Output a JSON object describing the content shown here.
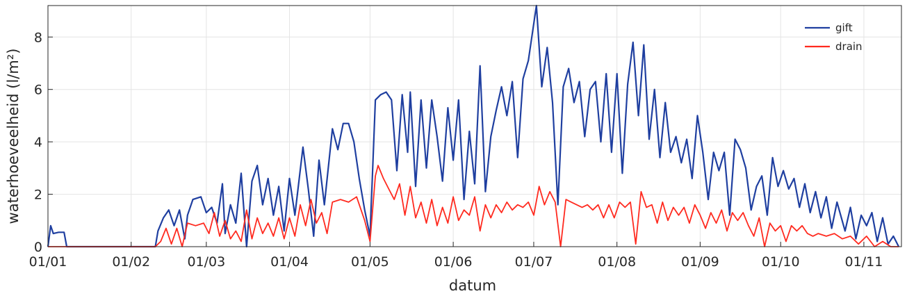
{
  "chart_data": {
    "type": "line",
    "title": "",
    "xlabel": "datum",
    "ylabel": "waterhoeveelheid (l/m²)",
    "x_tick_labels": [
      "01/01",
      "01/02",
      "01/03",
      "01/04",
      "01/05",
      "01/06",
      "01/07",
      "01/08",
      "01/09",
      "01/10",
      "01/11"
    ],
    "y_ticks": [
      0,
      2,
      4,
      6,
      8
    ],
    "xlim": [
      "01/01",
      "15/11"
    ],
    "ylim": [
      0,
      9.2
    ],
    "grid": true,
    "legend_position": "top-right",
    "series": [
      {
        "name": "gift",
        "color": "#1f3fa0",
        "points": [
          [
            "01/01",
            0
          ],
          [
            "02/01",
            0.8
          ],
          [
            "03/01",
            0.5
          ],
          [
            "05/01",
            0.55
          ],
          [
            "07/01",
            0.55
          ],
          [
            "08/01",
            0
          ],
          [
            "01/02",
            0
          ],
          [
            "10/02",
            0
          ],
          [
            "11/02",
            0.6
          ],
          [
            "13/02",
            1.1
          ],
          [
            "15/02",
            1.4
          ],
          [
            "17/02",
            0.8
          ],
          [
            "19/02",
            1.4
          ],
          [
            "21/02",
            0.3
          ],
          [
            "22/02",
            1.2
          ],
          [
            "24/02",
            1.8
          ],
          [
            "27/02",
            1.9
          ],
          [
            "01/03",
            1.3
          ],
          [
            "03/03",
            1.5
          ],
          [
            "05/03",
            0.9
          ],
          [
            "07/03",
            2.4
          ],
          [
            "08/03",
            0.5
          ],
          [
            "10/03",
            1.6
          ],
          [
            "12/03",
            0.9
          ],
          [
            "14/03",
            2.8
          ],
          [
            "16/03",
            0
          ],
          [
            "18/03",
            2.5
          ],
          [
            "20/03",
            3.1
          ],
          [
            "22/03",
            1.6
          ],
          [
            "24/03",
            2.6
          ],
          [
            "26/03",
            1.2
          ],
          [
            "28/03",
            2.3
          ],
          [
            "30/03",
            0.6
          ],
          [
            "01/04",
            2.6
          ],
          [
            "03/04",
            1.2
          ],
          [
            "06/04",
            3.8
          ],
          [
            "08/04",
            2.2
          ],
          [
            "10/04",
            0.4
          ],
          [
            "12/04",
            3.3
          ],
          [
            "14/04",
            1.6
          ],
          [
            "17/04",
            4.5
          ],
          [
            "19/04",
            3.7
          ],
          [
            "21/04",
            4.7
          ],
          [
            "23/04",
            4.7
          ],
          [
            "25/04",
            4.0
          ],
          [
            "27/04",
            2.6
          ],
          [
            "29/04",
            1.4
          ],
          [
            "01/05",
            0.4
          ],
          [
            "03/05",
            5.6
          ],
          [
            "05/05",
            5.8
          ],
          [
            "07/05",
            5.9
          ],
          [
            "09/05",
            5.6
          ],
          [
            "11/05",
            2.9
          ],
          [
            "13/05",
            5.8
          ],
          [
            "15/05",
            3.6
          ],
          [
            "16/05",
            5.9
          ],
          [
            "18/05",
            2.3
          ],
          [
            "20/05",
            5.6
          ],
          [
            "22/05",
            3.0
          ],
          [
            "24/05",
            5.6
          ],
          [
            "26/05",
            4.2
          ],
          [
            "28/05",
            2.5
          ],
          [
            "30/05",
            5.3
          ],
          [
            "01/06",
            3.3
          ],
          [
            "03/06",
            5.6
          ],
          [
            "05/06",
            1.8
          ],
          [
            "07/06",
            4.4
          ],
          [
            "09/06",
            2.4
          ],
          [
            "11/06",
            6.9
          ],
          [
            "13/06",
            2.1
          ],
          [
            "15/06",
            4.2
          ],
          [
            "17/06",
            5.2
          ],
          [
            "19/06",
            6.1
          ],
          [
            "21/06",
            5.0
          ],
          [
            "23/06",
            6.3
          ],
          [
            "25/06",
            3.4
          ],
          [
            "27/06",
            6.4
          ],
          [
            "29/06",
            7.1
          ],
          [
            "02/07",
            9.2
          ],
          [
            "04/07",
            6.1
          ],
          [
            "06/07",
            7.6
          ],
          [
            "08/07",
            5.5
          ],
          [
            "10/07",
            1.6
          ],
          [
            "12/07",
            6.1
          ],
          [
            "14/07",
            6.8
          ],
          [
            "16/07",
            5.5
          ],
          [
            "18/07",
            6.3
          ],
          [
            "20/07",
            4.2
          ],
          [
            "22/07",
            6.0
          ],
          [
            "24/07",
            6.3
          ],
          [
            "26/07",
            4.0
          ],
          [
            "28/07",
            6.6
          ],
          [
            "30/07",
            3.6
          ],
          [
            "01/08",
            6.6
          ],
          [
            "03/08",
            2.8
          ],
          [
            "05/08",
            6.2
          ],
          [
            "07/08",
            7.8
          ],
          [
            "09/08",
            5.0
          ],
          [
            "11/08",
            7.7
          ],
          [
            "13/08",
            4.1
          ],
          [
            "15/08",
            6.0
          ],
          [
            "17/08",
            3.4
          ],
          [
            "19/08",
            5.5
          ],
          [
            "21/08",
            3.6
          ],
          [
            "23/08",
            4.2
          ],
          [
            "25/08",
            3.2
          ],
          [
            "27/08",
            4.1
          ],
          [
            "29/08",
            2.6
          ],
          [
            "31/08",
            5.0
          ],
          [
            "02/09",
            3.6
          ],
          [
            "04/09",
            1.8
          ],
          [
            "06/09",
            3.6
          ],
          [
            "08/09",
            2.9
          ],
          [
            "10/09",
            3.6
          ],
          [
            "12/09",
            1.2
          ],
          [
            "14/09",
            4.1
          ],
          [
            "16/09",
            3.7
          ],
          [
            "18/09",
            3.0
          ],
          [
            "20/09",
            1.4
          ],
          [
            "22/09",
            2.3
          ],
          [
            "24/09",
            2.7
          ],
          [
            "26/09",
            1.2
          ],
          [
            "28/09",
            3.4
          ],
          [
            "30/09",
            2.3
          ],
          [
            "02/10",
            2.9
          ],
          [
            "04/10",
            2.2
          ],
          [
            "06/10",
            2.6
          ],
          [
            "08/10",
            1.5
          ],
          [
            "10/10",
            2.4
          ],
          [
            "12/10",
            1.3
          ],
          [
            "14/10",
            2.1
          ],
          [
            "16/10",
            1.1
          ],
          [
            "18/10",
            1.9
          ],
          [
            "20/10",
            0.7
          ],
          [
            "22/10",
            1.7
          ],
          [
            "25/10",
            0.6
          ],
          [
            "27/10",
            1.5
          ],
          [
            "29/10",
            0.3
          ],
          [
            "31/10",
            1.2
          ],
          [
            "02/11",
            0.8
          ],
          [
            "04/11",
            1.3
          ],
          [
            "06/11",
            0.2
          ],
          [
            "08/11",
            1.1
          ],
          [
            "10/11",
            0.1
          ],
          [
            "12/11",
            0.4
          ],
          [
            "14/11",
            0
          ]
        ]
      },
      {
        "name": "drain",
        "color": "#ff2a1f",
        "points": [
          [
            "01/01",
            0
          ],
          [
            "10/02",
            0
          ],
          [
            "12/02",
            0.2
          ],
          [
            "14/02",
            0.7
          ],
          [
            "16/02",
            0.1
          ],
          [
            "18/02",
            0.7
          ],
          [
            "20/02",
            0
          ],
          [
            "22/02",
            0.9
          ],
          [
            "25/02",
            0.8
          ],
          [
            "28/02",
            0.9
          ],
          [
            "02/03",
            0.5
          ],
          [
            "04/03",
            1.3
          ],
          [
            "06/03",
            0.4
          ],
          [
            "08/03",
            1.0
          ],
          [
            "10/03",
            0.3
          ],
          [
            "12/03",
            0.6
          ],
          [
            "14/03",
            0.2
          ],
          [
            "16/03",
            1.4
          ],
          [
            "18/03",
            0.3
          ],
          [
            "20/03",
            1.1
          ],
          [
            "22/03",
            0.5
          ],
          [
            "24/03",
            0.9
          ],
          [
            "26/03",
            0.4
          ],
          [
            "28/03",
            1.1
          ],
          [
            "30/03",
            0.3
          ],
          [
            "01/04",
            1.1
          ],
          [
            "03/04",
            0.4
          ],
          [
            "05/04",
            1.6
          ],
          [
            "07/04",
            0.8
          ],
          [
            "09/04",
            1.8
          ],
          [
            "11/04",
            0.9
          ],
          [
            "13/04",
            1.3
          ],
          [
            "15/04",
            0.5
          ],
          [
            "17/04",
            1.7
          ],
          [
            "20/04",
            1.8
          ],
          [
            "23/04",
            1.7
          ],
          [
            "26/04",
            1.9
          ],
          [
            "29/04",
            1.0
          ],
          [
            "01/05",
            0.2
          ],
          [
            "03/05",
            2.7
          ],
          [
            "04/05",
            3.1
          ],
          [
            "06/05",
            2.6
          ],
          [
            "08/05",
            2.2
          ],
          [
            "10/05",
            1.8
          ],
          [
            "12/05",
            2.4
          ],
          [
            "14/05",
            1.2
          ],
          [
            "16/05",
            2.3
          ],
          [
            "18/05",
            1.1
          ],
          [
            "20/05",
            1.7
          ],
          [
            "22/05",
            0.9
          ],
          [
            "24/05",
            1.8
          ],
          [
            "26/05",
            0.8
          ],
          [
            "28/05",
            1.5
          ],
          [
            "30/05",
            0.9
          ],
          [
            "01/06",
            1.9
          ],
          [
            "03/06",
            1.0
          ],
          [
            "05/06",
            1.4
          ],
          [
            "07/06",
            1.2
          ],
          [
            "09/06",
            1.9
          ],
          [
            "11/06",
            0.6
          ],
          [
            "13/06",
            1.6
          ],
          [
            "15/06",
            1.1
          ],
          [
            "17/06",
            1.6
          ],
          [
            "19/06",
            1.3
          ],
          [
            "21/06",
            1.7
          ],
          [
            "23/06",
            1.4
          ],
          [
            "25/06",
            1.6
          ],
          [
            "27/06",
            1.5
          ],
          [
            "29/06",
            1.7
          ],
          [
            "01/07",
            1.2
          ],
          [
            "03/07",
            2.3
          ],
          [
            "05/07",
            1.6
          ],
          [
            "07/07",
            2.1
          ],
          [
            "09/07",
            1.7
          ],
          [
            "11/07",
            0
          ],
          [
            "13/07",
            1.8
          ],
          [
            "15/07",
            1.7
          ],
          [
            "17/07",
            1.6
          ],
          [
            "19/07",
            1.5
          ],
          [
            "21/07",
            1.6
          ],
          [
            "23/07",
            1.4
          ],
          [
            "25/07",
            1.6
          ],
          [
            "27/07",
            1.1
          ],
          [
            "29/07",
            1.6
          ],
          [
            "31/07",
            1.1
          ],
          [
            "02/08",
            1.7
          ],
          [
            "04/08",
            1.5
          ],
          [
            "06/08",
            1.7
          ],
          [
            "08/08",
            0.1
          ],
          [
            "10/08",
            2.1
          ],
          [
            "12/08",
            1.5
          ],
          [
            "14/08",
            1.6
          ],
          [
            "16/08",
            0.9
          ],
          [
            "18/08",
            1.7
          ],
          [
            "20/08",
            1.0
          ],
          [
            "22/08",
            1.5
          ],
          [
            "24/08",
            1.2
          ],
          [
            "26/08",
            1.5
          ],
          [
            "28/08",
            0.9
          ],
          [
            "30/08",
            1.6
          ],
          [
            "01/09",
            1.2
          ],
          [
            "03/09",
            0.7
          ],
          [
            "05/09",
            1.3
          ],
          [
            "07/09",
            0.9
          ],
          [
            "09/09",
            1.4
          ],
          [
            "11/09",
            0.6
          ],
          [
            "13/09",
            1.3
          ],
          [
            "15/09",
            1.0
          ],
          [
            "17/09",
            1.3
          ],
          [
            "19/09",
            0.8
          ],
          [
            "21/09",
            0.4
          ],
          [
            "23/09",
            1.1
          ],
          [
            "25/09",
            0
          ],
          [
            "27/09",
            0.9
          ],
          [
            "29/09",
            0.6
          ],
          [
            "01/10",
            0.8
          ],
          [
            "03/10",
            0.2
          ],
          [
            "05/10",
            0.8
          ],
          [
            "07/10",
            0.6
          ],
          [
            "09/10",
            0.8
          ],
          [
            "11/10",
            0.5
          ],
          [
            "13/10",
            0.4
          ],
          [
            "15/10",
            0.5
          ],
          [
            "18/10",
            0.4
          ],
          [
            "21/10",
            0.5
          ],
          [
            "24/10",
            0.3
          ],
          [
            "27/10",
            0.4
          ],
          [
            "30/10",
            0.1
          ],
          [
            "02/11",
            0.4
          ],
          [
            "05/11",
            0
          ],
          [
            "08/11",
            0.2
          ],
          [
            "11/11",
            0
          ],
          [
            "14/11",
            0
          ]
        ]
      }
    ]
  }
}
